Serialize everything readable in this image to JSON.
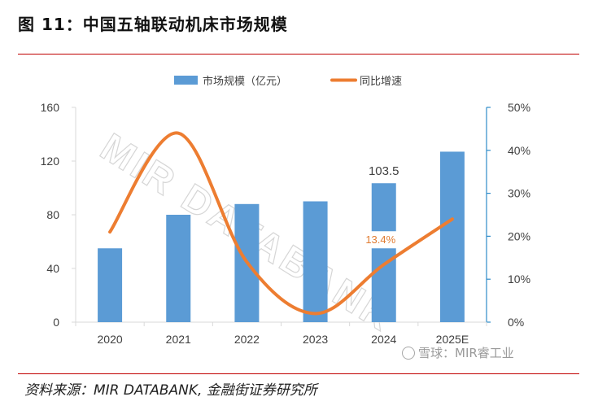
{
  "figure": {
    "title": "图 11：中国五轴联动机床市场规模",
    "source": "资料来源：MIR DATABANK, 金融街证券研究所"
  },
  "watermarks": {
    "diagonal": "MIR DATABANK",
    "bottom_right": "雪球：MIR睿工业"
  },
  "chart_data": {
    "type": "bar",
    "categories": [
      "2020",
      "2021",
      "2022",
      "2023",
      "2024",
      "2025E"
    ],
    "series": [
      {
        "name": "市场规模（亿元）",
        "type": "bar",
        "axis": "left",
        "values": [
          55,
          80,
          88,
          90,
          103.5,
          127
        ],
        "color": "#5b9bd5"
      },
      {
        "name": "同比增速",
        "type": "line",
        "axis": "right",
        "smooth": true,
        "values": [
          0.21,
          0.44,
          0.14,
          0.02,
          0.134,
          0.24
        ],
        "color": "#ed7d31"
      }
    ],
    "data_labels": [
      {
        "series": 0,
        "index": 4,
        "text": "103.5"
      },
      {
        "series": 1,
        "index": 4,
        "text": "13.4%"
      }
    ],
    "y_left": {
      "min": 0,
      "max": 160,
      "ticks": [
        "0",
        "40",
        "80",
        "120",
        "160"
      ]
    },
    "y_right": {
      "min": 0,
      "max": 0.5,
      "ticks": [
        "0%",
        "10%",
        "20%",
        "30%",
        "40%",
        "50%"
      ]
    },
    "legend_position": "top",
    "grid": false
  }
}
